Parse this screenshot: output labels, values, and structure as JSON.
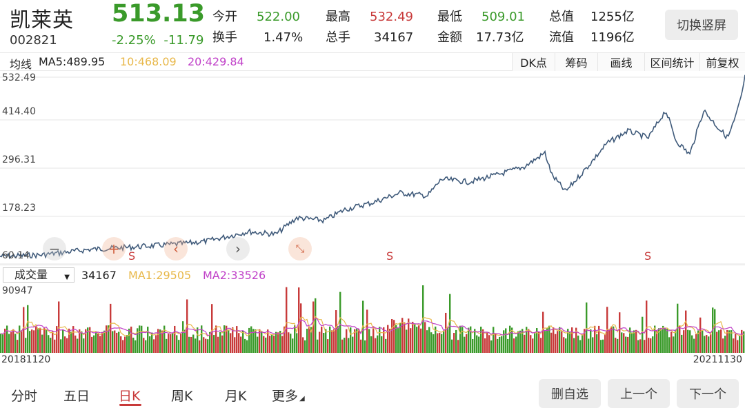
{
  "header": {
    "name": "凯莱英",
    "code": "002821",
    "price": "513.13",
    "change_pct": "-2.25%",
    "change_amt": "-11.79",
    "switch_label": "切换竖屏"
  },
  "stats": [
    {
      "label": "今开",
      "value": "522.00",
      "tone": "green"
    },
    {
      "label": "最高",
      "value": "532.49",
      "tone": "red"
    },
    {
      "label": "最低",
      "value": "509.01",
      "tone": "green"
    },
    {
      "label": "总值",
      "value": "1255亿",
      "tone": "dark"
    },
    {
      "label": "换手",
      "value": "1.47%",
      "tone": "dark"
    },
    {
      "label": "总手",
      "value": "34167",
      "tone": "dark"
    },
    {
      "label": "金额",
      "value": "17.73亿",
      "tone": "dark"
    },
    {
      "label": "流值",
      "value": "1196亿",
      "tone": "dark"
    }
  ],
  "ma_bar": {
    "label": "均线",
    "ma5": "MA5:489.95",
    "ma10": "10:468.09",
    "ma20": "20:429.84",
    "tools": [
      "DK点",
      "筹码",
      "画线",
      "区间统计",
      "前复权"
    ]
  },
  "price_chart": {
    "y_labels": [
      "532.49",
      "414.40",
      "296.31",
      "178.23",
      "60.14"
    ],
    "signal_label": "S",
    "line_color": "#3f5a7a"
  },
  "controls": {
    "zoom_out": "−",
    "zoom_in": "+",
    "prev": "‹",
    "next": "›",
    "collapse": "⤡"
  },
  "volume": {
    "selector": "成交量",
    "current": "34167",
    "ma1": "MA1:29505",
    "ma2": "MA2:33526",
    "max_label": "90947",
    "start_date": "20181120",
    "end_date": "20211130"
  },
  "periods": [
    "分时",
    "五日",
    "日K",
    "周K",
    "月K",
    "更多"
  ],
  "active_period": "日K",
  "buttons": {
    "remove": "删自选",
    "prev": "上一个",
    "next": "下一个"
  },
  "colors": {
    "up": "#c83a3a",
    "down": "#3a9a2a",
    "ma5": "#e8b84a",
    "ma20": "#c040c8"
  }
}
